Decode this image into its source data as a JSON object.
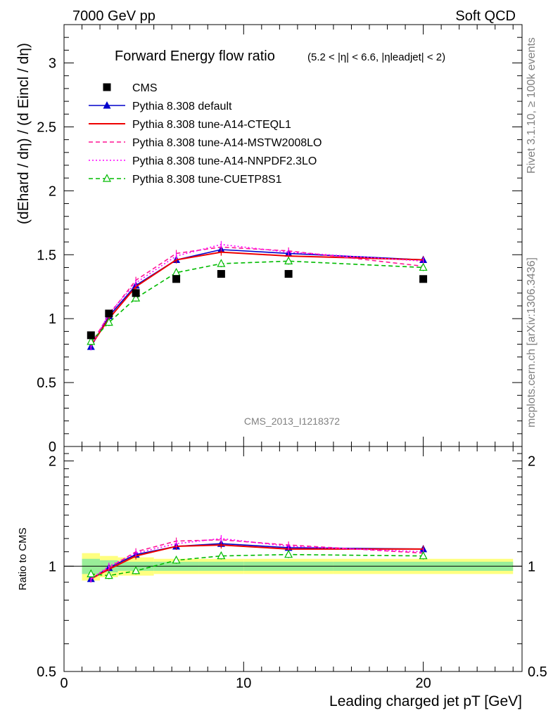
{
  "header": {
    "left": "7000 GeV pp",
    "right": "Soft QCD"
  },
  "side": {
    "rivet": "Rivet 3.1.10, ≥ 100k events",
    "mcplots": "mcplots.cern.ch [arXiv:1306.3436]"
  },
  "watermark": "CMS_2013_I1218372",
  "chart_data": {
    "type": "line",
    "title": "Forward Energy flow ratio",
    "title_condition": "(5.2 < |η| < 6.6, |ηleadjet| < 2)",
    "ylabel": "(dEhard / dη) / (d Eincl / dη)",
    "xlabel": "Leading charged jet pT [GeV]",
    "xlim": [
      0,
      25.5
    ],
    "ylim": [
      0,
      3.3
    ],
    "x_ticks": [
      "0",
      "10",
      "20"
    ],
    "y_ticks": [
      "0",
      "0.5",
      "1",
      "1.5",
      "2",
      "2.5",
      "3"
    ],
    "ratio_panel": {
      "ylabel": "Ratio to CMS",
      "ylim": [
        0.5,
        2.2
      ],
      "y_ticks": [
        "0.5",
        "1",
        "2"
      ]
    },
    "x": [
      1.5,
      2.5,
      4.0,
      6.25,
      8.75,
      12.5,
      20.0
    ],
    "series": [
      {
        "name": "CMS",
        "color": "#000000",
        "style": "data",
        "values": [
          0.87,
          1.04,
          1.2,
          1.31,
          1.35,
          1.35,
          1.31
        ]
      },
      {
        "name": "Pythia 8.308 default",
        "color": "#0000cc",
        "style": "line-triangle",
        "values": [
          0.78,
          1.02,
          1.26,
          1.46,
          1.54,
          1.51,
          1.46
        ]
      },
      {
        "name": "Pythia 8.308 tune-A14-CTEQL1",
        "color": "#ee0000",
        "style": "line",
        "values": [
          0.79,
          1.0,
          1.25,
          1.46,
          1.52,
          1.49,
          1.46
        ]
      },
      {
        "name": "Pythia 8.308 tune-A14-MSTW2008LO",
        "color": "#ff1493",
        "style": "dashed",
        "values": [
          0.8,
          1.03,
          1.3,
          1.51,
          1.56,
          1.53,
          1.41
        ]
      },
      {
        "name": "Pythia 8.308 tune-A14-NNPDF2.3LO",
        "color": "#ff00ff",
        "style": "dotted",
        "values": [
          0.78,
          1.04,
          1.28,
          1.49,
          1.58,
          1.52,
          1.45
        ]
      },
      {
        "name": "Pythia 8.308 tune-CUETP8S1",
        "color": "#00bb00",
        "style": "dashed-open-triangle",
        "values": [
          0.82,
          0.97,
          1.16,
          1.36,
          1.43,
          1.45,
          1.4
        ]
      }
    ],
    "ratio_values": [
      [
        0.92,
        0.99,
        1.08,
        1.14,
        1.16,
        1.13,
        1.12
      ],
      [
        0.92,
        0.98,
        1.07,
        1.14,
        1.15,
        1.12,
        1.12
      ],
      [
        0.92,
        0.99,
        1.1,
        1.18,
        1.19,
        1.15,
        1.09
      ],
      [
        0.92,
        1.0,
        1.09,
        1.16,
        1.2,
        1.14,
        1.1
      ],
      [
        0.95,
        0.94,
        0.97,
        1.04,
        1.07,
        1.08,
        1.07
      ]
    ],
    "band_x": [
      1.0,
      2.0,
      3.0,
      5.0,
      7.5,
      10.0,
      15.0,
      25.0
    ],
    "band_yellow": [
      0.09,
      0.07,
      0.06,
      0.05,
      0.05,
      0.05,
      0.05
    ],
    "band_green": [
      0.05,
      0.04,
      0.03,
      0.03,
      0.03,
      0.03,
      0.03
    ]
  }
}
